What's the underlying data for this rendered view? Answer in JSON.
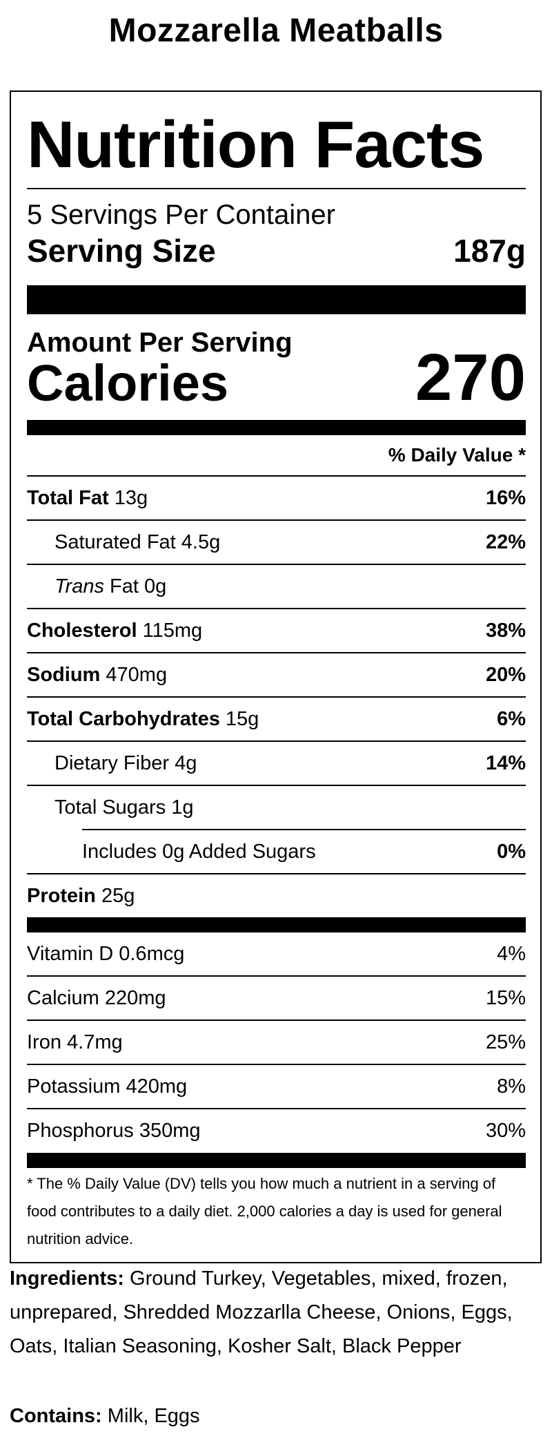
{
  "recipe_title": "Mozzarella Meatballs",
  "label": {
    "heading": "Nutrition Facts",
    "servings_per_container": "5 Servings Per Container",
    "serving_size_label": "Serving Size",
    "serving_size_value": "187g",
    "amount_per_serving": "Amount Per Serving",
    "calories_label": "Calories",
    "calories_value": "270",
    "daily_value_header": "% Daily Value *"
  },
  "nutrients": [
    {
      "name": "Total Fat",
      "amount": "13g",
      "dv": "16%"
    },
    {
      "name": "Saturated Fat",
      "amount": "4.5g",
      "dv": "22%"
    },
    {
      "name_italic": "Trans",
      "name": "Fat",
      "amount": "0g",
      "dv": ""
    },
    {
      "name": "Cholesterol",
      "amount": "115mg",
      "dv": "38%"
    },
    {
      "name": "Sodium",
      "amount": "470mg",
      "dv": "20%"
    },
    {
      "name": "Total Carbohydrates",
      "amount": "15g",
      "dv": "6%"
    },
    {
      "name": "Dietary Fiber",
      "amount": "4g",
      "dv": "14%"
    },
    {
      "name": "Total Sugars",
      "amount": "1g",
      "dv": ""
    },
    {
      "name": "Includes 0g Added Sugars",
      "amount": "",
      "dv": "0%"
    },
    {
      "name": "Protein",
      "amount": "25g",
      "dv": ""
    }
  ],
  "vitamins": [
    {
      "name": "Vitamin D",
      "amount": "0.6mcg",
      "dv": "4%"
    },
    {
      "name": "Calcium",
      "amount": "220mg",
      "dv": "15%"
    },
    {
      "name": "Iron",
      "amount": "4.7mg",
      "dv": "25%"
    },
    {
      "name": "Potassium",
      "amount": "420mg",
      "dv": "8%"
    },
    {
      "name": "Phosphorus",
      "amount": "350mg",
      "dv": "30%"
    }
  ],
  "footnote": "* The % Daily Value (DV) tells you how much a nutrient in a serving of food contributes to a daily diet. 2,000 calories a day is used for general nutrition advice.",
  "ingredients_label": "Ingredients:",
  "ingredients_text": "Ground Turkey, Vegetables, mixed, frozen, unprepared, Shredded Mozzarlla Cheese, Onions, Eggs, Oats, Italian Seasoning, Kosher Salt, Black Pepper",
  "contains_label": "Contains:",
  "contains_text": "Milk, Eggs"
}
